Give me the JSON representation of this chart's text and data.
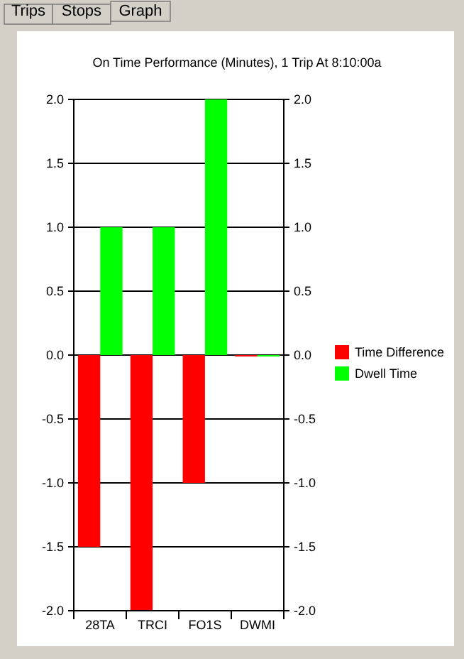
{
  "chart_data": {
    "type": "bar",
    "title": "On Time Performance (Minutes), 1 Trip At  8:10:00a",
    "categories": [
      "28TA",
      "TRCI",
      "FO1S",
      "DWMI"
    ],
    "series": [
      {
        "name": "Time Difference",
        "color": "#ff0000",
        "values": [
          -1.5,
          -2,
          -1,
          0
        ]
      },
      {
        "name": "Dwell Time",
        "color": "#00ff00",
        "values": [
          1,
          1,
          2,
          0
        ]
      }
    ],
    "ylim": [
      -2,
      2
    ],
    "yticks": [
      {
        "value": -2,
        "label": "-2.0"
      },
      {
        "value": -1.5,
        "label": "-1.5"
      },
      {
        "value": -1,
        "label": "-1.0"
      },
      {
        "value": -0.5,
        "label": "-0.5"
      },
      {
        "value": 0,
        "label": "0.0"
      },
      {
        "value": 0.5,
        "label": "0.5"
      },
      {
        "value": 1,
        "label": "1.0"
      },
      {
        "value": 1.5,
        "label": "1.5"
      },
      {
        "value": 2,
        "label": "2.0"
      }
    ],
    "y2lim": [
      -2,
      2
    ],
    "y2ticks": [
      {
        "value": -2,
        "label": "-2.0"
      },
      {
        "value": -1.5,
        "label": "-1.5"
      },
      {
        "value": -1,
        "label": "-1.0"
      },
      {
        "value": -0.5,
        "label": "-0.5"
      },
      {
        "value": 0,
        "label": "0.0"
      },
      {
        "value": 0.5,
        "label": "0.5"
      },
      {
        "value": 1,
        "label": "1.0"
      },
      {
        "value": 1.5,
        "label": "1.5"
      },
      {
        "value": 2,
        "label": "2.0"
      }
    ],
    "grid": "y",
    "legend": "right",
    "annotations": [
      "Trips",
      "Stops",
      "Graph"
    ]
  }
}
